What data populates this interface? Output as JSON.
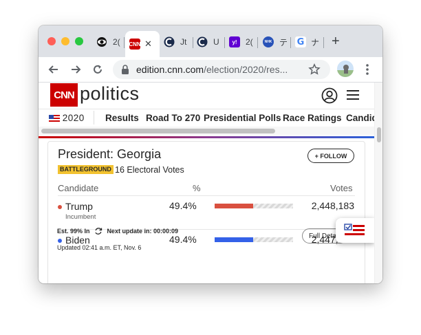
{
  "browser": {
    "tabs": [
      {
        "label": "2(",
        "favicon": "cbs-eye-icon"
      },
      {
        "label": "",
        "favicon": "cnn-icon",
        "close": "✕"
      },
      {
        "label": "Jt",
        "favicon": "globe-c-icon"
      },
      {
        "label": "U",
        "favicon": "globe-c-icon"
      },
      {
        "label": "2(",
        "favicon": "yahoo-icon",
        "favicon_text": "y!"
      },
      {
        "label": "テ",
        "favicon": "nhk-icon",
        "favicon_text": "NHK"
      },
      {
        "label": "ナ",
        "favicon": "google-icon",
        "favicon_text": "G"
      }
    ],
    "new_tab": "+",
    "url_host": "edition.cnn.com",
    "url_path": "/election/2020/res..."
  },
  "site": {
    "logo": "CNN",
    "section": "politics",
    "nav": {
      "brand": "2020",
      "items": [
        "Results",
        "Road To 270",
        "Presidential Polls",
        "Race Ratings",
        "Candid"
      ]
    }
  },
  "race": {
    "title": "President: Georgia",
    "follow_label": "+ FOLLOW",
    "badge": "BATTLEGROUND",
    "electoral_votes": "16 Electoral Votes",
    "columns": {
      "candidate": "Candidate",
      "pct": "%",
      "votes": "Votes"
    },
    "candidates": [
      {
        "name": "Trump",
        "note": "Incumbent",
        "pct": "49.4%",
        "votes": "2,448,183",
        "color": "#d9503f",
        "bar_fraction": 0.494
      },
      {
        "name": "Biden",
        "note": "",
        "pct": "49.4%",
        "votes": "2,447,518",
        "color": "#3461e8",
        "bar_fraction": 0.494
      }
    ],
    "est_in": "Est. 99% In",
    "next_update": "Next update in: 00:00:09",
    "updated": "Updated 02:41 a.m. ET, Nov. 6",
    "full_details": "Full Details"
  },
  "colors": {
    "cnn_red": "#cc0000",
    "gop": "#d9503f",
    "dem": "#3461e8",
    "badge": "#f2c230"
  }
}
